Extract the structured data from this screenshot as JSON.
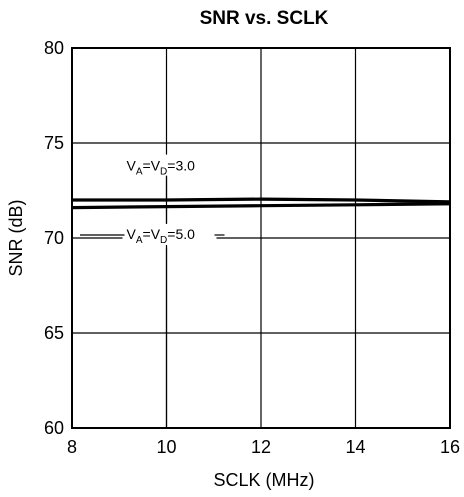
{
  "chart_data": {
    "type": "line",
    "title": "SNR vs. SCLK",
    "xlabel": "SCLK (MHz)",
    "ylabel": "SNR (dB)",
    "xlim": [
      8,
      16
    ],
    "ylim": [
      60,
      80
    ],
    "xticks": [
      "8",
      "10",
      "12",
      "14",
      "16"
    ],
    "yticks": [
      "60",
      "65",
      "70",
      "75",
      "80"
    ],
    "grid": true,
    "series": [
      {
        "name": "VA=VD=3.0",
        "x": [
          8,
          10,
          12,
          14,
          16
        ],
        "y": [
          72.0,
          72.0,
          72.05,
          72.0,
          71.9
        ]
      },
      {
        "name": "VA=VD=5.0",
        "x": [
          8,
          10,
          12,
          14,
          16
        ],
        "y": [
          71.6,
          71.65,
          71.7,
          71.75,
          71.8
        ]
      }
    ],
    "annotations": [
      {
        "parts": [
          [
            "V",
            ""
          ],
          [
            "A",
            "sub"
          ],
          [
            "=V",
            ""
          ],
          [
            "D",
            "sub"
          ],
          [
            "=3.0",
            ""
          ]
        ],
        "x": 10,
        "y": 73.6,
        "pointer_y": 72.0
      },
      {
        "parts": [
          [
            "V",
            ""
          ],
          [
            "A",
            "sub"
          ],
          [
            "=V",
            ""
          ],
          [
            "D",
            "sub"
          ],
          [
            "=5.0",
            ""
          ]
        ],
        "x": 10,
        "y": 70.0,
        "pointer_y": 71.65
      }
    ],
    "colors": {
      "line": "#000000",
      "grid": "#000000",
      "background": "#ffffff"
    }
  }
}
